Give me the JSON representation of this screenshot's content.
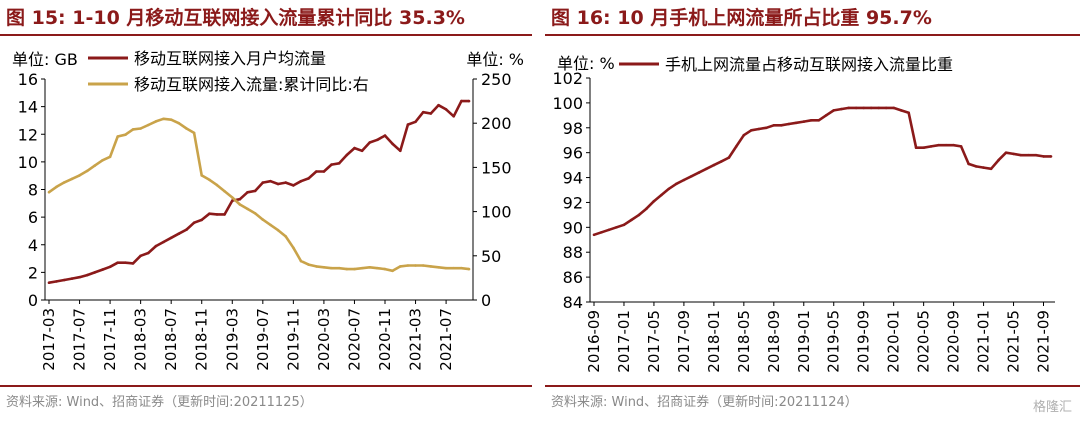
{
  "left_panel": {
    "figure_title": "图 15:  1-10 月移动互联网接入流量累计同比 35.3%",
    "source": "资料来源:  Wind、招商证券（更新时间:20211125）"
  },
  "right_panel": {
    "figure_title": "图 16:  10 月手机上网流量所占比重 95.7%",
    "source": "资料来源:  Wind、招商证券（更新时间:20211124）"
  },
  "watermark": "格隆汇",
  "chart_data": [
    {
      "type": "line",
      "unit_left": "单位:  GB",
      "unit_right": "单位:  %",
      "ylim": [
        0,
        16
      ],
      "ylim_right": [
        0,
        250
      ],
      "yticks": [
        0,
        2,
        4,
        6,
        8,
        10,
        12,
        14,
        16
      ],
      "yticks_right": [
        0,
        50,
        100,
        150,
        200,
        250
      ],
      "x_tick_labels": [
        "2017-03",
        "2017-07",
        "2017-11",
        "2018-03",
        "2018-07",
        "2018-11",
        "2019-03",
        "2019-07",
        "2019-11",
        "2020-03",
        "2020-07",
        "2020-11",
        "2021-03",
        "2021-07"
      ],
      "x_start": "2017-03",
      "grid": false,
      "legend_position": "top-left",
      "series": [
        {
          "name": "移动互联网接入月户均流量",
          "axis": "left",
          "color": "#8B1A1A",
          "x": [
            "2017-03",
            "2017-04",
            "2017-05",
            "2017-06",
            "2017-07",
            "2017-08",
            "2017-09",
            "2017-10",
            "2017-11",
            "2017-12",
            "2018-01",
            "2018-02",
            "2018-03",
            "2018-04",
            "2018-05",
            "2018-06",
            "2018-07",
            "2018-08",
            "2018-09",
            "2018-10",
            "2018-11",
            "2018-12",
            "2019-01",
            "2019-02",
            "2019-03",
            "2019-04",
            "2019-05",
            "2019-06",
            "2019-07",
            "2019-08",
            "2019-09",
            "2019-10",
            "2019-11",
            "2019-12",
            "2020-01",
            "2020-02",
            "2020-03",
            "2020-04",
            "2020-05",
            "2020-06",
            "2020-07",
            "2020-08",
            "2020-09",
            "2020-10",
            "2020-11",
            "2020-12",
            "2021-01",
            "2021-02",
            "2021-03",
            "2021-04",
            "2021-05",
            "2021-06",
            "2021-07",
            "2021-08",
            "2021-09",
            "2021-10"
          ],
          "values": [
            1.25,
            1.35,
            1.45,
            1.55,
            1.65,
            1.8,
            2.0,
            2.2,
            2.4,
            2.7,
            2.7,
            2.65,
            3.2,
            3.4,
            3.9,
            4.2,
            4.5,
            4.8,
            5.1,
            5.6,
            5.8,
            6.25,
            6.2,
            6.2,
            7.2,
            7.3,
            7.8,
            7.9,
            8.5,
            8.6,
            8.4,
            8.5,
            8.3,
            8.6,
            8.8,
            9.3,
            9.3,
            9.8,
            9.9,
            10.5,
            11.0,
            10.8,
            11.4,
            11.6,
            11.9,
            11.3,
            10.8,
            12.7,
            12.9,
            13.6,
            13.5,
            14.1,
            13.8,
            13.3,
            14.4,
            14.4
          ]
        },
        {
          "name": "移动互联网接入流量:累计同比:右",
          "axis": "right",
          "color": "#C9A34A",
          "x": [
            "2017-03",
            "2017-04",
            "2017-05",
            "2017-06",
            "2017-07",
            "2017-08",
            "2017-09",
            "2017-10",
            "2017-11",
            "2017-12",
            "2018-01",
            "2018-02",
            "2018-03",
            "2018-04",
            "2018-05",
            "2018-06",
            "2018-07",
            "2018-08",
            "2018-09",
            "2018-10",
            "2018-11",
            "2018-12",
            "2019-01",
            "2019-02",
            "2019-03",
            "2019-04",
            "2019-05",
            "2019-06",
            "2019-07",
            "2019-08",
            "2019-09",
            "2019-10",
            "2019-11",
            "2019-12",
            "2020-01",
            "2020-02",
            "2020-03",
            "2020-04",
            "2020-05",
            "2020-06",
            "2020-07",
            "2020-08",
            "2020-09",
            "2020-10",
            "2020-11",
            "2020-12",
            "2021-01",
            "2021-02",
            "2021-03",
            "2021-04",
            "2021-05",
            "2021-06",
            "2021-07",
            "2021-08",
            "2021-09",
            "2021-10"
          ],
          "values": [
            122,
            128,
            133,
            137,
            141,
            146,
            152,
            158,
            162,
            185,
            187,
            193,
            194,
            198,
            202,
            205,
            204,
            200,
            194,
            189,
            141,
            136,
            130,
            123,
            116,
            108,
            103,
            98,
            91,
            85,
            79,
            72,
            59,
            44,
            40,
            38,
            37,
            36,
            36,
            35,
            35,
            36,
            37,
            36,
            35,
            33,
            38,
            39,
            39,
            39,
            38,
            37,
            36,
            36,
            36,
            35
          ]
        }
      ]
    },
    {
      "type": "line",
      "unit_left": "单位:  %",
      "ylim": [
        84,
        102
      ],
      "yticks": [
        84,
        86,
        88,
        90,
        92,
        94,
        96,
        98,
        100,
        102
      ],
      "x_tick_labels": [
        "2016-09",
        "2017-01",
        "2017-05",
        "2017-09",
        "2018-01",
        "2018-05",
        "2018-09",
        "2019-01",
        "2019-05",
        "2019-09",
        "2020-01",
        "2020-05",
        "2020-09",
        "2021-01",
        "2021-05",
        "2021-09"
      ],
      "x_start": "2016-09",
      "grid": false,
      "legend_position": "top-left",
      "series": [
        {
          "name": "手机上网流量占移动互联网接入流量比重",
          "color": "#8B1A1A",
          "x": [
            "2016-09",
            "2016-10",
            "2016-11",
            "2016-12",
            "2017-01",
            "2017-02",
            "2017-03",
            "2017-04",
            "2017-05",
            "2017-06",
            "2017-07",
            "2017-08",
            "2017-09",
            "2017-10",
            "2017-11",
            "2017-12",
            "2018-01",
            "2018-02",
            "2018-03",
            "2018-04",
            "2018-05",
            "2018-06",
            "2018-07",
            "2018-08",
            "2018-09",
            "2018-10",
            "2018-11",
            "2018-12",
            "2019-01",
            "2019-02",
            "2019-03",
            "2019-04",
            "2019-05",
            "2019-06",
            "2019-07",
            "2019-08",
            "2019-09",
            "2019-10",
            "2019-11",
            "2019-12",
            "2020-01",
            "2020-02",
            "2020-03",
            "2020-04",
            "2020-05",
            "2020-06",
            "2020-07",
            "2020-08",
            "2020-09",
            "2020-10",
            "2020-11",
            "2020-12",
            "2021-01",
            "2021-02",
            "2021-03",
            "2021-04",
            "2021-05",
            "2021-06",
            "2021-07",
            "2021-08",
            "2021-09",
            "2021-10"
          ],
          "values": [
            89.4,
            89.6,
            89.8,
            90.0,
            90.2,
            90.6,
            91.0,
            91.5,
            92.1,
            92.6,
            93.1,
            93.5,
            93.8,
            94.1,
            94.4,
            94.7,
            95.0,
            95.3,
            95.6,
            96.5,
            97.4,
            97.8,
            97.9,
            98.0,
            98.2,
            98.2,
            98.3,
            98.4,
            98.5,
            98.6,
            98.6,
            99.0,
            99.4,
            99.5,
            99.6,
            99.6,
            99.6,
            99.6,
            99.6,
            99.6,
            99.6,
            99.4,
            99.2,
            96.4,
            96.4,
            96.5,
            96.6,
            96.6,
            96.6,
            96.5,
            95.1,
            94.9,
            94.8,
            94.7,
            95.4,
            96.0,
            95.9,
            95.8,
            95.8,
            95.8,
            95.7,
            95.7
          ]
        }
      ]
    }
  ]
}
